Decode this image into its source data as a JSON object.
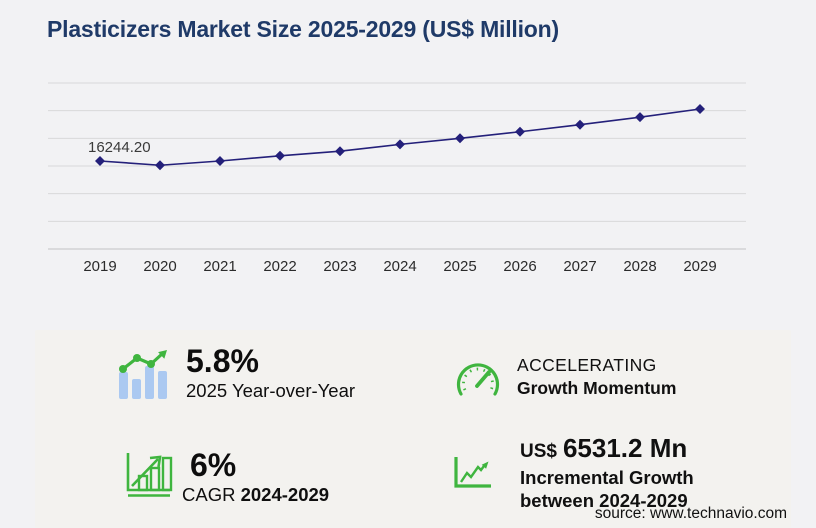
{
  "header": {
    "title": "Plasticizers Market Size 2025-2029 (US$ Million)"
  },
  "chart_data": {
    "type": "line",
    "title": "Plasticizers Market Size 2025-2029 (US$ Million)",
    "x": [
      2019,
      2020,
      2021,
      2022,
      2023,
      2024,
      2025,
      2026,
      2027,
      2028,
      2029
    ],
    "series": [
      {
        "name": "Market size (US$ Million)",
        "values": [
          16244.2,
          15460,
          16240,
          17200,
          18050,
          19310.8,
          20430.8,
          21640,
          22940,
          24330,
          25842
        ]
      }
    ],
    "visible_point_label": {
      "x": 2019,
      "text": "16244.20"
    },
    "values_estimated_except_2019": true,
    "ylim": [
      0,
      31000
    ],
    "grid": "horizontal",
    "legend": "none",
    "marker": "diamond",
    "line_color": "#24207a"
  },
  "stats": {
    "yoy": {
      "value": "5.8%",
      "caption": "2025 Year-over-Year"
    },
    "momentum": {
      "line1": "ACCELERATING",
      "line2": "Growth Momentum"
    },
    "cagr": {
      "value": "6%",
      "label": "CAGR",
      "range": "2024-2029"
    },
    "incremental": {
      "currency": "US$",
      "value": "6531.2 Mn",
      "line1": "Incremental Growth",
      "line2": "between 2024-2029"
    }
  },
  "footer": {
    "source": "source: www.technavio.com"
  },
  "colors": {
    "title": "#1f3a68",
    "line": "#24207a",
    "grid": "#d8d8da",
    "axis": "#c2c2c4",
    "green": "#3fb53f",
    "icon_bar_blue": "#abc9f1",
    "page_bg": "#f2f2f4",
    "panel_bg": "#f3f2ef"
  }
}
